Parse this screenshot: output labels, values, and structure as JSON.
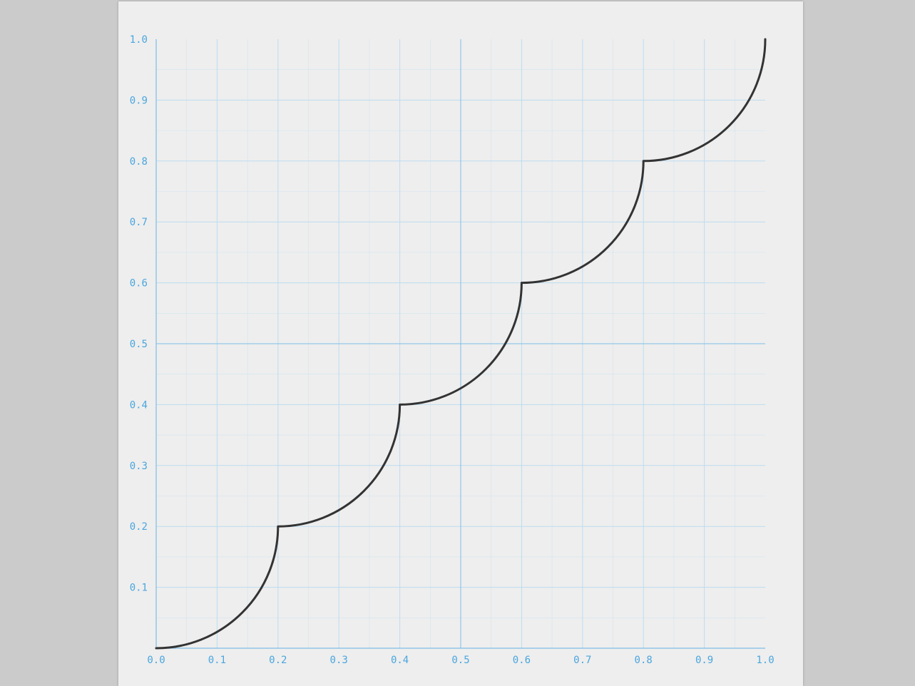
{
  "chart_data": {
    "type": "line",
    "title": "",
    "xlabel": "",
    "ylabel": "",
    "xlim": [
      0,
      1
    ],
    "ylim": [
      0,
      1
    ],
    "grid": true,
    "x_ticks": [
      "0.0",
      "0.1",
      "0.2",
      "0.3",
      "0.4",
      "0.5",
      "0.6",
      "0.7",
      "0.8",
      "0.9",
      "1.0"
    ],
    "y_ticks": [
      "0.1",
      "0.2",
      "0.3",
      "0.4",
      "0.5",
      "0.6",
      "0.7",
      "0.8",
      "0.9",
      "1.0"
    ],
    "series": [
      {
        "shape": "quarter-circle arcs",
        "points": [
          [
            0,
            0
          ],
          [
            0.2,
            0.2
          ],
          [
            0.4,
            0.4
          ],
          [
            0.6,
            0.6
          ],
          [
            0.8,
            0.8
          ],
          [
            1.0,
            1.0
          ]
        ]
      }
    ]
  },
  "colors": {
    "page_background": "#cbcbcb",
    "paper": "#eeeeee",
    "grid": "#bcdcf0",
    "axis": "#7fbde6",
    "tick_label": "#4aa6de",
    "curve": "#333333"
  }
}
